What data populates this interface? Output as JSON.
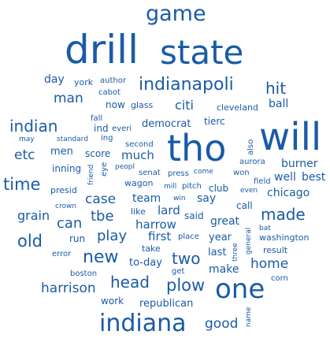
{
  "word_cloud": {
    "color": "#1a5ba6",
    "words": [
      "game",
      "drill",
      "state",
      "day",
      "york",
      "author",
      "cabot",
      "indianapoli",
      "man",
      "now",
      "glass",
      "hit",
      "ball",
      "indian",
      "fall",
      "ind",
      "everi",
      "democrat",
      "citi",
      "cleveland",
      "tierc",
      "tho",
      "will",
      "may",
      "standard",
      "ing",
      "etc",
      "men",
      "score",
      "second",
      "much",
      "also",
      "time",
      "inning",
      "friend",
      "eye",
      "peopl",
      "senat",
      "press",
      "come",
      "won",
      "aurora",
      "burner",
      "well",
      "best",
      "presid",
      "wagon",
      "mill",
      "pitch",
      "club",
      "field",
      "case",
      "team",
      "say",
      "even",
      "chicago",
      "grain",
      "crown",
      "win",
      "call",
      "can",
      "tbe",
      "like",
      "lard",
      "said",
      "made",
      "old",
      "play",
      "harrow",
      "great",
      "bat",
      "general",
      "washington",
      "run",
      "first",
      "place",
      "year",
      "three",
      "result",
      "new",
      "take",
      "error",
      "two",
      "last",
      "to-day",
      "home",
      "boston",
      "get",
      "make",
      "harrison",
      "head",
      "plow",
      "corn",
      "one",
      "work",
      "republican",
      "indiana",
      "good",
      "name"
    ]
  }
}
